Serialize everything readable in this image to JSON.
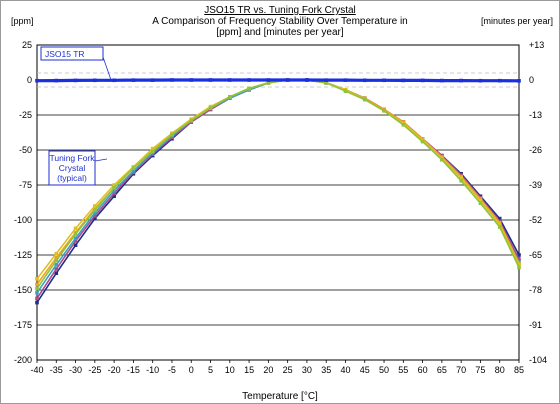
{
  "chart_data": {
    "type": "line",
    "title": "JSO15 TR vs. Tuning Fork Crystal",
    "subtitle_lines": [
      "A Comparison of Frequency Stability Over Temperature in",
      "[ppm] and [minutes per year]"
    ],
    "ylabel_left": "[ppm]",
    "ylabel_right": "[minutes per year]",
    "xlabel": "Temperature [°C]",
    "x": [
      -40,
      -35,
      -30,
      -25,
      -20,
      -15,
      -10,
      -5,
      0,
      5,
      10,
      15,
      20,
      25,
      30,
      35,
      40,
      45,
      50,
      55,
      60,
      65,
      70,
      75,
      80,
      85
    ],
    "xlim": [
      -40,
      85
    ],
    "ylim": [
      -200,
      25
    ],
    "yticks_left": [
      25,
      0,
      -25,
      -50,
      -75,
      -100,
      -125,
      -150,
      -175,
      -200
    ],
    "yticks_right": [
      13,
      0,
      -13,
      -26,
      -39,
      -52,
      -65,
      -78,
      -91,
      -104
    ],
    "grid": true,
    "series": [
      {
        "name": "JSO15 TR",
        "color": "#1a2fe0",
        "values": [
          -0.5,
          -0.4,
          -0.3,
          -0.2,
          -0.2,
          -0.1,
          -0.1,
          0,
          0,
          0,
          0,
          0,
          0,
          0,
          0,
          -0.1,
          -0.1,
          -0.2,
          -0.2,
          -0.3,
          -0.3,
          -0.4,
          -0.4,
          -0.5,
          -0.5,
          -0.6
        ]
      },
      {
        "name": "Tuning Fork Crystal (typical)",
        "color": "#1c2f8a",
        "values": [
          -159,
          -138,
          -118,
          -99,
          -83,
          -67,
          -54,
          -42,
          -30,
          -21,
          -13,
          -7,
          -2,
          0,
          0,
          -2,
          -7,
          -13,
          -21,
          -30,
          -42,
          -54,
          -67,
          -83,
          -99,
          -125
        ]
      },
      {
        "color": "#b04a8a",
        "values": [
          -156,
          -135,
          -115,
          -97,
          -81,
          -66,
          -53,
          -41,
          -30,
          -21,
          -13,
          -7,
          -2,
          0,
          0,
          -2,
          -7,
          -13,
          -21,
          -30,
          -42,
          -54,
          -68,
          -84,
          -101,
          -128
        ]
      },
      {
        "color": "#3aa0c8",
        "values": [
          -152,
          -132,
          -113,
          -95,
          -79,
          -65,
          -52,
          -40,
          -29,
          -20,
          -13,
          -7,
          -2,
          0,
          0,
          -2,
          -7,
          -13,
          -21,
          -31,
          -43,
          -56,
          -70,
          -86,
          -103,
          -130
        ]
      },
      {
        "color": "#f0a020",
        "values": [
          -146,
          -127,
          -109,
          -92,
          -77,
          -63,
          -50,
          -39,
          -28,
          -20,
          -12,
          -6,
          -2,
          0,
          0,
          -2,
          -7,
          -13,
          -21,
          -30,
          -42,
          -55,
          -69,
          -85,
          -102,
          -131
        ]
      },
      {
        "color": "#e0c020",
        "values": [
          -142,
          -124,
          -106,
          -90,
          -75,
          -62,
          -49,
          -38,
          -28,
          -19,
          -12,
          -6,
          -2,
          0,
          0,
          -2,
          -7,
          -14,
          -22,
          -31,
          -43,
          -56,
          -70,
          -86,
          -103,
          -132
        ]
      },
      {
        "color": "#8fc43a",
        "values": [
          -149,
          -129,
          -110,
          -93,
          -77,
          -63,
          -51,
          -39,
          -29,
          -20,
          -12,
          -6,
          -2,
          0,
          0,
          -2,
          -8,
          -14,
          -22,
          -32,
          -44,
          -57,
          -72,
          -88,
          -105,
          -134
        ]
      }
    ],
    "annotations": [
      {
        "text": "JSO15 TR"
      },
      {
        "text_lines": [
          "Tuning Fork",
          "Crystal",
          "(typical)"
        ]
      }
    ]
  }
}
